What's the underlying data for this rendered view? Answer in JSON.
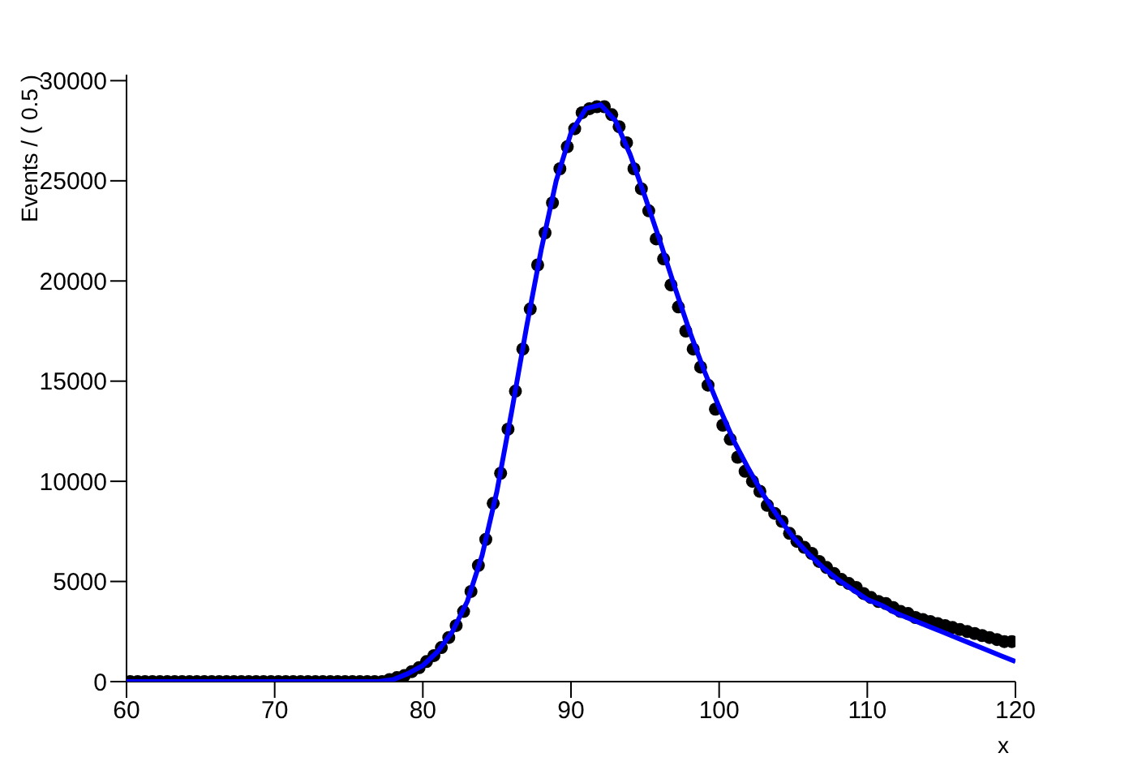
{
  "chart_data": {
    "type": "scatter",
    "xlabel": "x",
    "ylabel": "Events / ( 0.5 )",
    "xlim": [
      60,
      120
    ],
    "xticks": [
      60,
      70,
      80,
      90,
      100,
      110,
      120
    ],
    "ylim": [
      0,
      30300
    ],
    "yticks": [
      0,
      5000,
      10000,
      15000,
      20000,
      25000,
      30000
    ],
    "grid": false,
    "legend": false,
    "marker": "circle",
    "series": [
      {
        "color": "#000000",
        "x": [
          60.25,
          60.75,
          61.25,
          61.75,
          62.25,
          62.75,
          63.25,
          63.75,
          64.25,
          64.75,
          65.25,
          65.75,
          66.25,
          66.75,
          67.25,
          67.75,
          68.25,
          68.75,
          69.25,
          69.75,
          70.25,
          70.75,
          71.25,
          71.75,
          72.25,
          72.75,
          73.25,
          73.75,
          74.25,
          74.75,
          75.25,
          75.75,
          76.25,
          76.75,
          77.25,
          77.75,
          78.25,
          78.75,
          79.25,
          79.75,
          80.25,
          80.75,
          81.25,
          81.75,
          82.25,
          82.75,
          83.25,
          83.75,
          84.25,
          84.75,
          85.25,
          85.75,
          86.25,
          86.75,
          87.25,
          87.75,
          88.25,
          88.75,
          89.25,
          89.75,
          90.25,
          90.75,
          91.25,
          91.75,
          92.25,
          92.75,
          93.25,
          93.75,
          94.25,
          94.75,
          95.25,
          95.75,
          96.25,
          96.75,
          97.25,
          97.75,
          98.25,
          98.75,
          99.25,
          99.75,
          100.25,
          100.75,
          101.25,
          101.75,
          102.25,
          102.75,
          103.25,
          103.75,
          104.25,
          104.75,
          105.25,
          105.75,
          106.25,
          106.75,
          107.25,
          107.75,
          108.25,
          108.75,
          109.25,
          109.75,
          110.25,
          110.75,
          111.25,
          111.75,
          112.25,
          112.75,
          113.25,
          113.75,
          114.25,
          114.75,
          115.25,
          115.75,
          116.25,
          116.75,
          117.25,
          117.75,
          118.25,
          118.75,
          119.25,
          119.75
        ],
        "values": [
          0,
          0,
          0,
          0,
          0,
          0,
          0,
          0,
          0,
          0,
          0,
          0,
          0,
          0,
          0,
          0,
          0,
          0,
          0,
          0,
          0,
          0,
          0,
          0,
          0,
          0,
          0,
          0,
          0,
          0,
          0,
          0,
          0,
          0,
          0,
          100,
          200,
          300,
          500,
          700,
          1000,
          1300,
          1700,
          2200,
          2800,
          3500,
          4500,
          5800,
          7100,
          8900,
          10400,
          12600,
          14500,
          16600,
          18600,
          20800,
          22400,
          23900,
          25600,
          26700,
          27600,
          28400,
          28600,
          28700,
          28700,
          28300,
          27700,
          26900,
          25600,
          24600,
          23500,
          22100,
          21100,
          19800,
          18700,
          17500,
          16600,
          15700,
          14800,
          13600,
          12800,
          12100,
          11200,
          10500,
          10000,
          9500,
          8800,
          8400,
          8000,
          7400,
          7000,
          6700,
          6400,
          6000,
          5700,
          5400,
          5100,
          4900,
          4700,
          4400,
          4200,
          4000,
          3900,
          3700,
          3500,
          3400,
          3200,
          3100,
          3000,
          2900,
          2800,
          2700,
          2600,
          2500,
          2400,
          2300,
          2200,
          2100,
          2000,
          2000
        ]
      },
      {
        "type": "line",
        "color": "#0000ff",
        "marker": "none",
        "x": [
          60,
          77,
          78,
          79,
          80,
          81,
          82,
          83,
          84,
          85,
          86,
          87,
          88,
          89,
          90,
          91,
          92,
          93,
          94,
          95,
          96,
          97,
          98,
          99,
          100,
          101,
          102,
          103,
          104,
          105,
          106,
          107,
          108,
          109,
          110,
          111,
          112,
          113,
          114,
          115,
          116,
          117,
          118,
          119,
          120
        ],
        "values": [
          0,
          0,
          100,
          400,
          800,
          1500,
          2500,
          4000,
          6300,
          9500,
          13500,
          17700,
          21600,
          25000,
          27400,
          28600,
          28800,
          28000,
          26300,
          24200,
          22000,
          19700,
          17500,
          15500,
          13700,
          12000,
          10600,
          9300,
          8200,
          7200,
          6400,
          5700,
          5100,
          4600,
          4100,
          3800,
          3400,
          3100,
          2800,
          2500,
          2200,
          1900,
          1600,
          1300,
          1000
        ]
      }
    ]
  }
}
